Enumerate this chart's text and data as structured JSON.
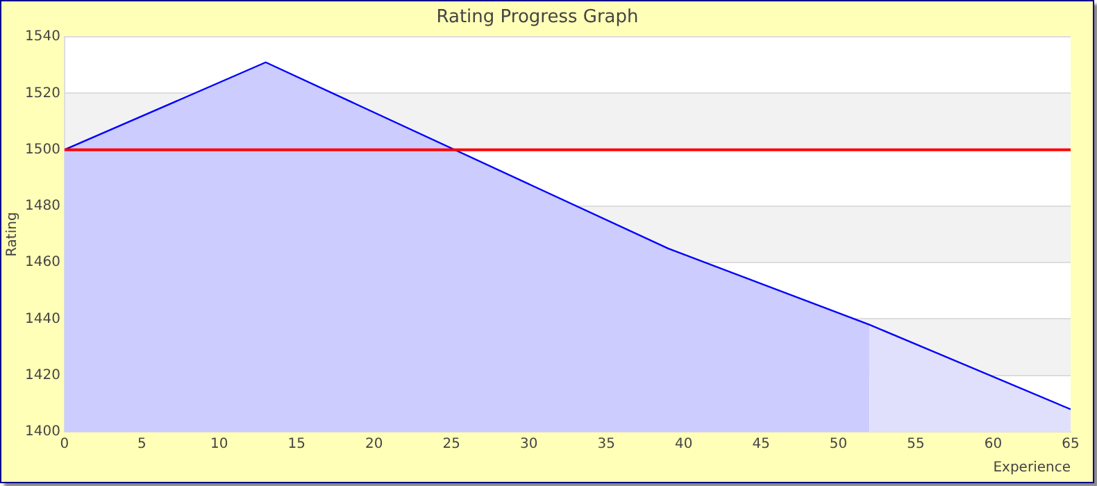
{
  "chart_data": {
    "type": "area",
    "title": "Rating Progress Graph",
    "xlabel": "Experience",
    "ylabel": "Rating",
    "series": [
      {
        "color": "#ccccff",
        "x": [
          0,
          13,
          39,
          52
        ],
        "values": [
          1500,
          1531,
          1465,
          1438
        ]
      },
      {
        "color": "#e0e0fc",
        "x": [
          52,
          65
        ],
        "values": [
          1438,
          1408
        ]
      },
      {
        "type": "line",
        "color": "#0000ff",
        "x": [
          0,
          13,
          39,
          52,
          65
        ],
        "values": [
          1500,
          1531,
          1465,
          1438,
          1408
        ]
      }
    ],
    "xlim": [
      0,
      65
    ],
    "xticks": [
      0,
      5,
      10,
      15,
      20,
      25,
      30,
      35,
      40,
      45,
      50,
      55,
      60,
      65
    ],
    "ylim": [
      1400,
      1540
    ],
    "yticks": [
      1400,
      1420,
      1440,
      1460,
      1480,
      1500,
      1520,
      1540
    ],
    "ref_lines": [
      {
        "axis": "y",
        "value": 1500,
        "color": "#ff0000"
      }
    ],
    "bands": [
      {
        "axis": "y",
        "from": 1500,
        "to": 1520,
        "color": "#f2f2f2"
      },
      {
        "axis": "y",
        "from": 1460,
        "to": 1480,
        "color": "#f2f2f2"
      },
      {
        "axis": "y",
        "from": 1420,
        "to": 1440,
        "color": "#f2f2f2"
      }
    ],
    "grid": "y",
    "legend": false
  }
}
